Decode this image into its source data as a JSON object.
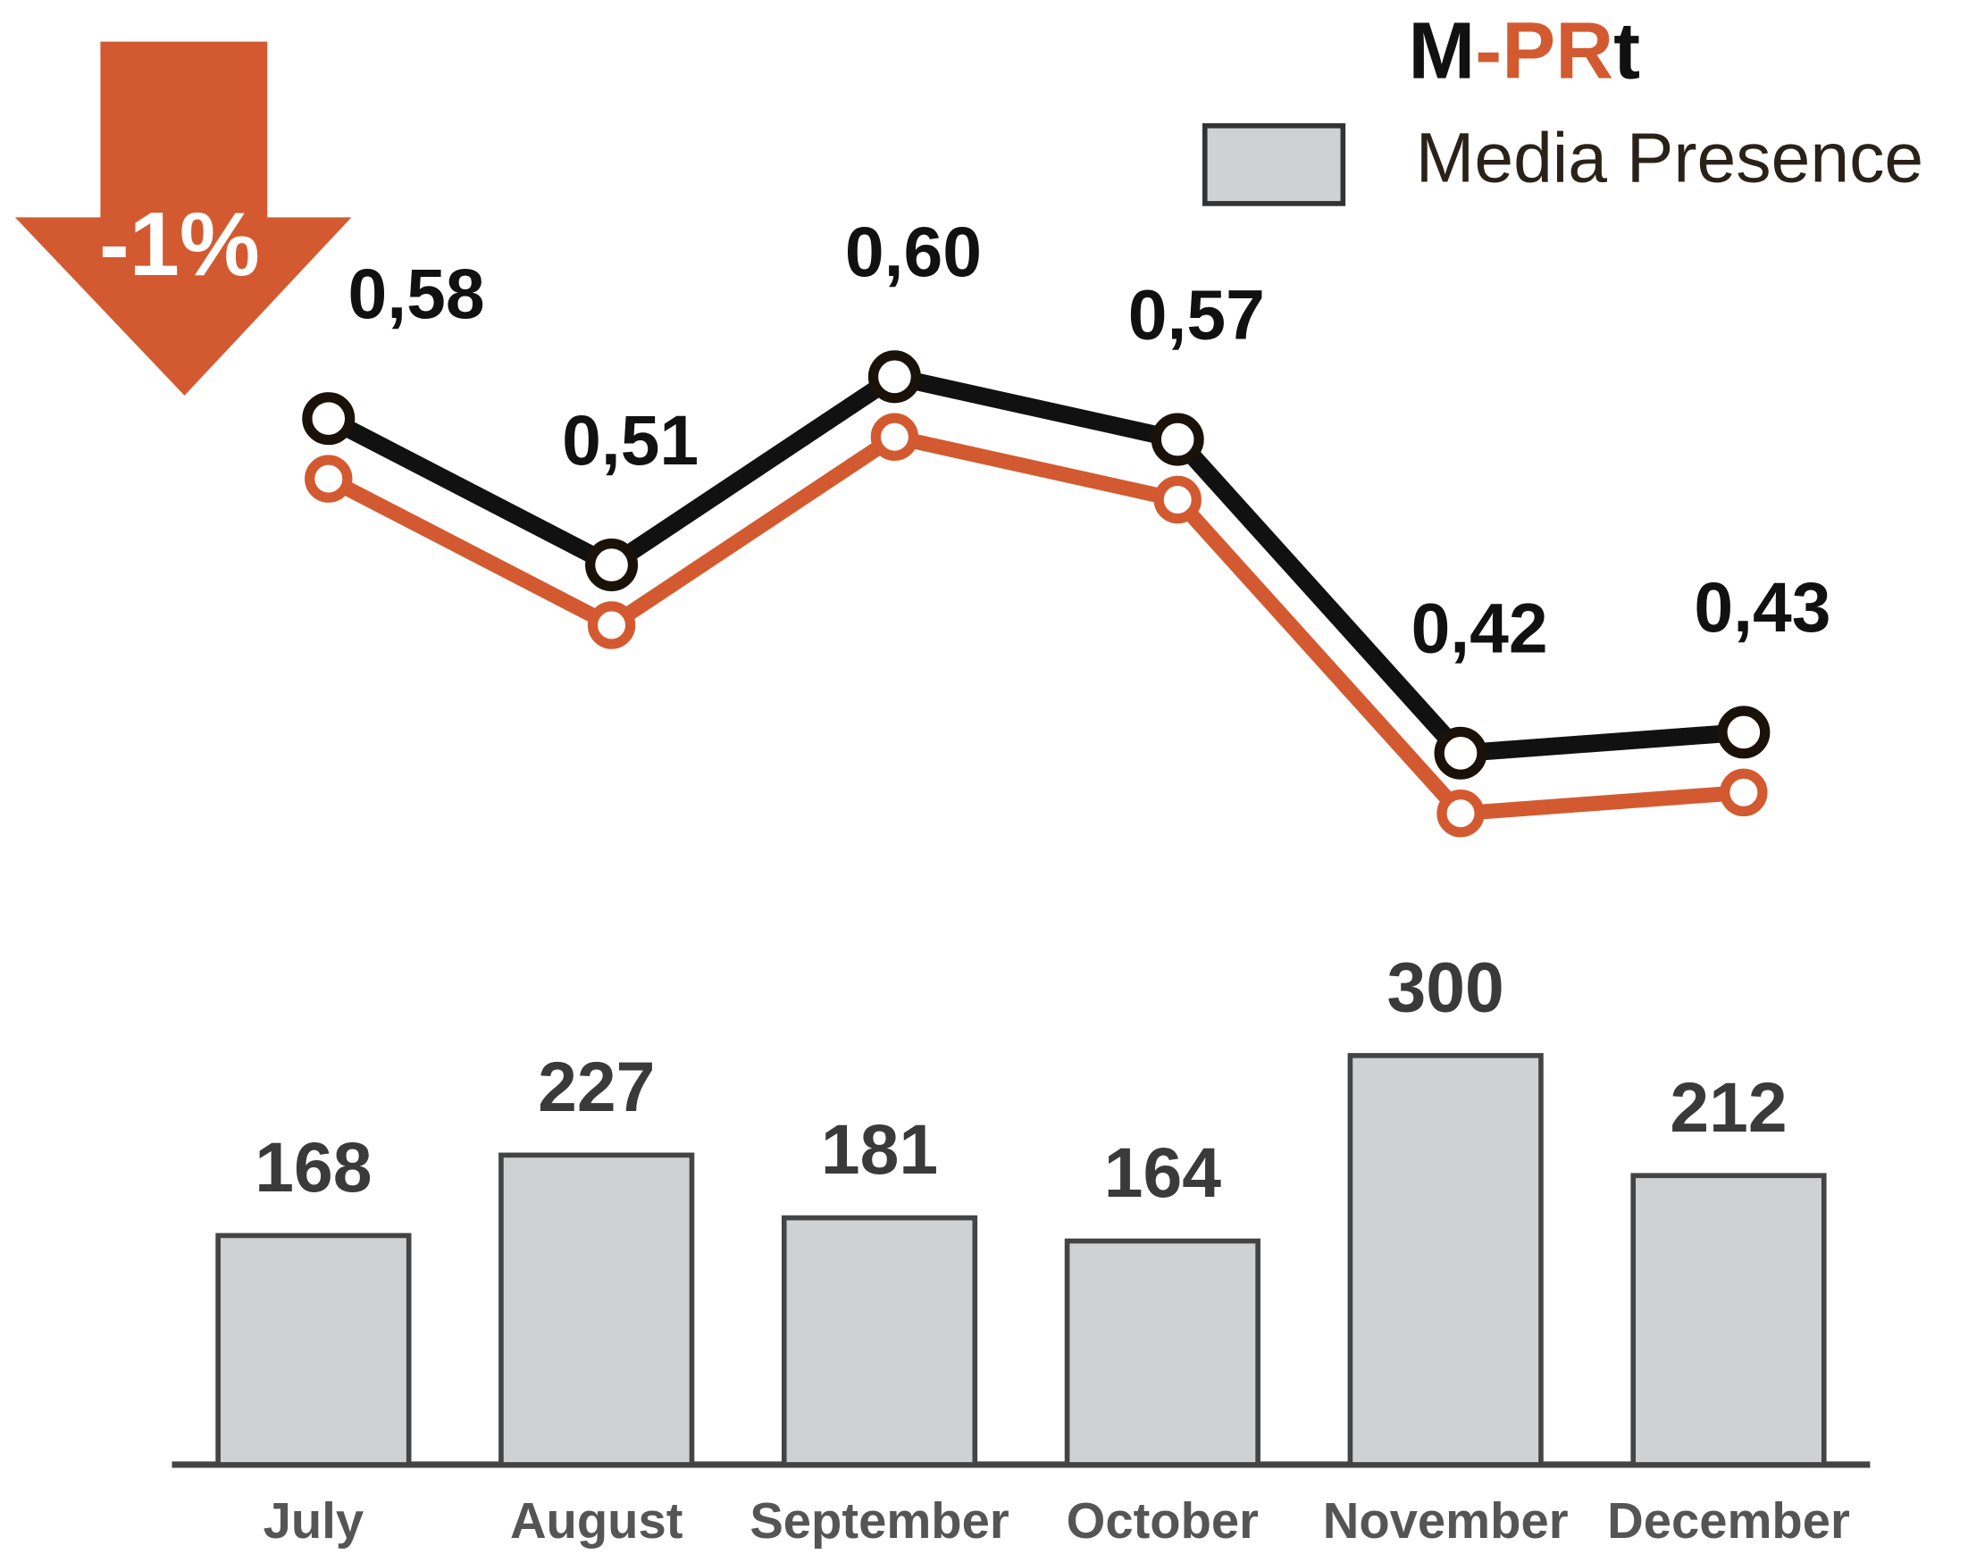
{
  "chart_data": [
    {
      "type": "line",
      "title_segments": [
        {
          "text": "M",
          "color": "#111111"
        },
        {
          "text": "-PR",
          "color": "#d35a30"
        },
        {
          "text": "t",
          "color": "#111111"
        }
      ],
      "annotation": "-1%",
      "annotation_color": "#d35a30",
      "values": [
        0.58,
        0.51,
        0.6,
        0.57,
        0.42,
        0.43
      ],
      "value_labels": [
        "0,58",
        "0,51",
        "0,60",
        "0,57",
        "0,42",
        "0,43"
      ],
      "color": "#111111",
      "shadow_color": "#d35a30"
    },
    {
      "type": "bar",
      "name": "Media Presence",
      "categories": [
        "July",
        "August",
        "September",
        "October",
        "November",
        "December"
      ],
      "values": [
        168,
        227,
        181,
        164,
        300,
        212
      ],
      "color": "#d0d1d3"
    }
  ]
}
